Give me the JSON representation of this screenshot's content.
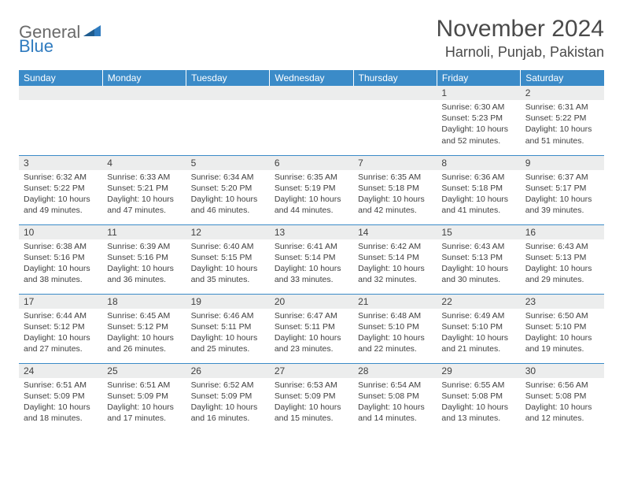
{
  "logo": {
    "part1": "General",
    "part2": "Blue"
  },
  "title": "November 2024",
  "location": "Harnoli, Punjab, Pakistan",
  "colors": {
    "header_bg": "#3b8bc8",
    "header_text": "#ffffff",
    "daynum_bg": "#eceded",
    "border": "#3b8bc8",
    "logo_gray": "#6a6a6a",
    "logo_blue": "#2f7bbf",
    "text": "#404040"
  },
  "weekdays": [
    "Sunday",
    "Monday",
    "Tuesday",
    "Wednesday",
    "Thursday",
    "Friday",
    "Saturday"
  ],
  "weeks": [
    [
      {
        "empty": true
      },
      {
        "empty": true
      },
      {
        "empty": true
      },
      {
        "empty": true
      },
      {
        "empty": true
      },
      {
        "day": "1",
        "sunrise": "Sunrise: 6:30 AM",
        "sunset": "Sunset: 5:23 PM",
        "daylight": "Daylight: 10 hours and 52 minutes."
      },
      {
        "day": "2",
        "sunrise": "Sunrise: 6:31 AM",
        "sunset": "Sunset: 5:22 PM",
        "daylight": "Daylight: 10 hours and 51 minutes."
      }
    ],
    [
      {
        "day": "3",
        "sunrise": "Sunrise: 6:32 AM",
        "sunset": "Sunset: 5:22 PM",
        "daylight": "Daylight: 10 hours and 49 minutes."
      },
      {
        "day": "4",
        "sunrise": "Sunrise: 6:33 AM",
        "sunset": "Sunset: 5:21 PM",
        "daylight": "Daylight: 10 hours and 47 minutes."
      },
      {
        "day": "5",
        "sunrise": "Sunrise: 6:34 AM",
        "sunset": "Sunset: 5:20 PM",
        "daylight": "Daylight: 10 hours and 46 minutes."
      },
      {
        "day": "6",
        "sunrise": "Sunrise: 6:35 AM",
        "sunset": "Sunset: 5:19 PM",
        "daylight": "Daylight: 10 hours and 44 minutes."
      },
      {
        "day": "7",
        "sunrise": "Sunrise: 6:35 AM",
        "sunset": "Sunset: 5:18 PM",
        "daylight": "Daylight: 10 hours and 42 minutes."
      },
      {
        "day": "8",
        "sunrise": "Sunrise: 6:36 AM",
        "sunset": "Sunset: 5:18 PM",
        "daylight": "Daylight: 10 hours and 41 minutes."
      },
      {
        "day": "9",
        "sunrise": "Sunrise: 6:37 AM",
        "sunset": "Sunset: 5:17 PM",
        "daylight": "Daylight: 10 hours and 39 minutes."
      }
    ],
    [
      {
        "day": "10",
        "sunrise": "Sunrise: 6:38 AM",
        "sunset": "Sunset: 5:16 PM",
        "daylight": "Daylight: 10 hours and 38 minutes."
      },
      {
        "day": "11",
        "sunrise": "Sunrise: 6:39 AM",
        "sunset": "Sunset: 5:16 PM",
        "daylight": "Daylight: 10 hours and 36 minutes."
      },
      {
        "day": "12",
        "sunrise": "Sunrise: 6:40 AM",
        "sunset": "Sunset: 5:15 PM",
        "daylight": "Daylight: 10 hours and 35 minutes."
      },
      {
        "day": "13",
        "sunrise": "Sunrise: 6:41 AM",
        "sunset": "Sunset: 5:14 PM",
        "daylight": "Daylight: 10 hours and 33 minutes."
      },
      {
        "day": "14",
        "sunrise": "Sunrise: 6:42 AM",
        "sunset": "Sunset: 5:14 PM",
        "daylight": "Daylight: 10 hours and 32 minutes."
      },
      {
        "day": "15",
        "sunrise": "Sunrise: 6:43 AM",
        "sunset": "Sunset: 5:13 PM",
        "daylight": "Daylight: 10 hours and 30 minutes."
      },
      {
        "day": "16",
        "sunrise": "Sunrise: 6:43 AM",
        "sunset": "Sunset: 5:13 PM",
        "daylight": "Daylight: 10 hours and 29 minutes."
      }
    ],
    [
      {
        "day": "17",
        "sunrise": "Sunrise: 6:44 AM",
        "sunset": "Sunset: 5:12 PM",
        "daylight": "Daylight: 10 hours and 27 minutes."
      },
      {
        "day": "18",
        "sunrise": "Sunrise: 6:45 AM",
        "sunset": "Sunset: 5:12 PM",
        "daylight": "Daylight: 10 hours and 26 minutes."
      },
      {
        "day": "19",
        "sunrise": "Sunrise: 6:46 AM",
        "sunset": "Sunset: 5:11 PM",
        "daylight": "Daylight: 10 hours and 25 minutes."
      },
      {
        "day": "20",
        "sunrise": "Sunrise: 6:47 AM",
        "sunset": "Sunset: 5:11 PM",
        "daylight": "Daylight: 10 hours and 23 minutes."
      },
      {
        "day": "21",
        "sunrise": "Sunrise: 6:48 AM",
        "sunset": "Sunset: 5:10 PM",
        "daylight": "Daylight: 10 hours and 22 minutes."
      },
      {
        "day": "22",
        "sunrise": "Sunrise: 6:49 AM",
        "sunset": "Sunset: 5:10 PM",
        "daylight": "Daylight: 10 hours and 21 minutes."
      },
      {
        "day": "23",
        "sunrise": "Sunrise: 6:50 AM",
        "sunset": "Sunset: 5:10 PM",
        "daylight": "Daylight: 10 hours and 19 minutes."
      }
    ],
    [
      {
        "day": "24",
        "sunrise": "Sunrise: 6:51 AM",
        "sunset": "Sunset: 5:09 PM",
        "daylight": "Daylight: 10 hours and 18 minutes."
      },
      {
        "day": "25",
        "sunrise": "Sunrise: 6:51 AM",
        "sunset": "Sunset: 5:09 PM",
        "daylight": "Daylight: 10 hours and 17 minutes."
      },
      {
        "day": "26",
        "sunrise": "Sunrise: 6:52 AM",
        "sunset": "Sunset: 5:09 PM",
        "daylight": "Daylight: 10 hours and 16 minutes."
      },
      {
        "day": "27",
        "sunrise": "Sunrise: 6:53 AM",
        "sunset": "Sunset: 5:09 PM",
        "daylight": "Daylight: 10 hours and 15 minutes."
      },
      {
        "day": "28",
        "sunrise": "Sunrise: 6:54 AM",
        "sunset": "Sunset: 5:08 PM",
        "daylight": "Daylight: 10 hours and 14 minutes."
      },
      {
        "day": "29",
        "sunrise": "Sunrise: 6:55 AM",
        "sunset": "Sunset: 5:08 PM",
        "daylight": "Daylight: 10 hours and 13 minutes."
      },
      {
        "day": "30",
        "sunrise": "Sunrise: 6:56 AM",
        "sunset": "Sunset: 5:08 PM",
        "daylight": "Daylight: 10 hours and 12 minutes."
      }
    ]
  ]
}
